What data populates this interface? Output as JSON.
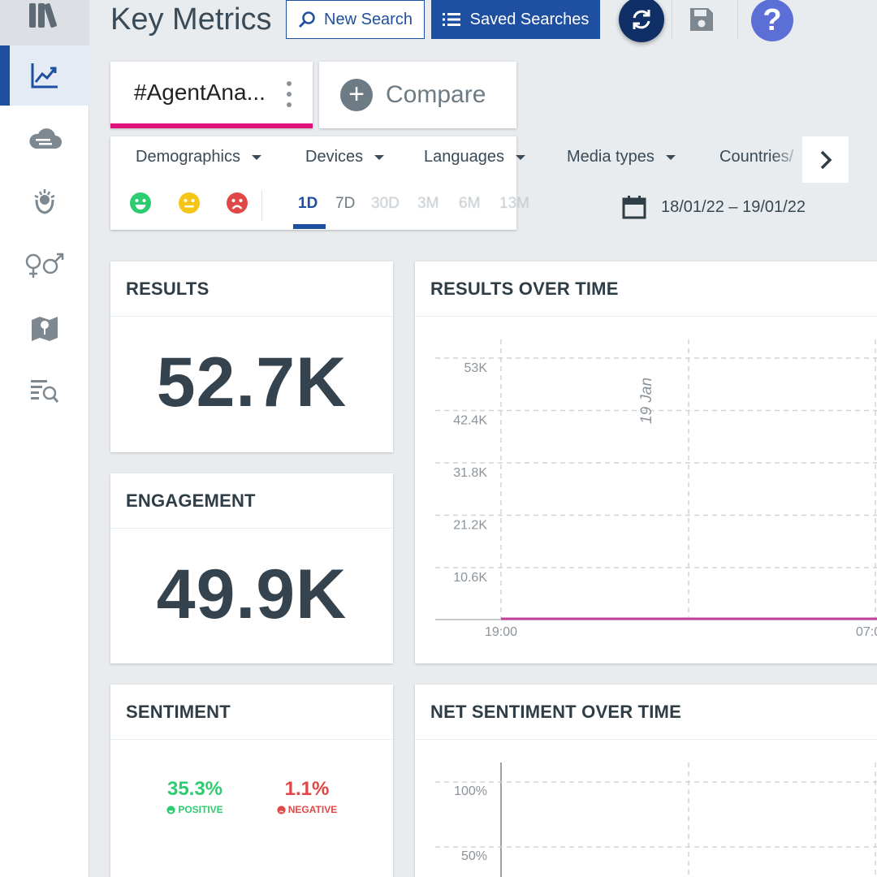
{
  "header": {
    "title": "Key Metrics",
    "new_search_label": "New Search",
    "saved_searches_label": "Saved Searches",
    "help_label": "?"
  },
  "search_tabs": {
    "active_name": "#AgentAna...",
    "compare_label": "Compare"
  },
  "filters": {
    "items": [
      "Demographics",
      "Devices",
      "Languages",
      "Media types",
      "Countries/"
    ]
  },
  "date_ranges": [
    "1D",
    "7D",
    "30D",
    "3M",
    "6M",
    "13M"
  ],
  "active_range": "1D",
  "date_range_text": "18/01/22 – 19/01/22",
  "cards": {
    "results": {
      "title": "RESULTS",
      "value": "52.7K"
    },
    "engagement": {
      "title": "ENGAGEMENT",
      "value": "49.9K"
    },
    "sentiment": {
      "title": "SENTIMENT",
      "positive_value": "35.3%",
      "positive_label": "POSITIVE",
      "negative_value": "1.1%",
      "negative_label": "NEGATIVE"
    },
    "results_over_time": {
      "title": "RESULTS OVER TIME"
    },
    "net_sentiment_over_time": {
      "title": "NET SENTIMENT OVER TIME"
    }
  },
  "colors": {
    "primary": "#1e4fa0",
    "accent": "#e0117a",
    "positive": "#2ecc71",
    "neutral": "#f5c518",
    "negative": "#e04848",
    "series_line": "#c2409a"
  },
  "chart_data": [
    {
      "type": "line",
      "title": "RESULTS OVER TIME",
      "y_ticks": [
        "53K",
        "42.4K",
        "31.8K",
        "21.2K",
        "10.6K"
      ],
      "x_ticks": [
        "19:00",
        "07:0"
      ],
      "annotation": "19 Jan",
      "grid": true,
      "series": [
        {
          "values": [
            0,
            0,
            0
          ]
        }
      ]
    },
    {
      "type": "line",
      "title": "NET SENTIMENT OVER TIME",
      "y_ticks": [
        "100%",
        "50%"
      ],
      "grid": true
    }
  ]
}
